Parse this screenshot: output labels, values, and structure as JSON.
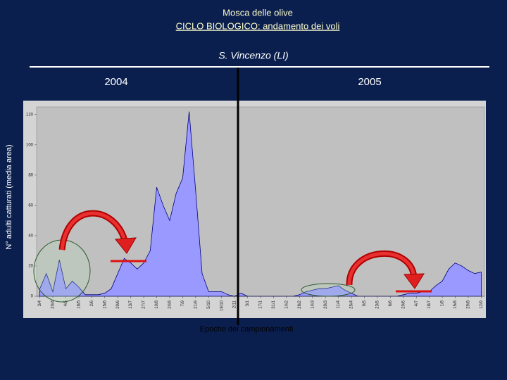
{
  "header": {
    "title": "Mosca delle olive",
    "subtitle": "CICLO BIOLOGICO: andamento dei voli",
    "location": "S. Vincenzo (LI)"
  },
  "year_labels": [
    "2004",
    "2005"
  ],
  "chart_data": {
    "type": "area",
    "y_label": "N° adulti catturati (media area)",
    "x_label": "Epoche dei campionamenti",
    "categories": [
      "3/4",
      null,
      "20/4",
      null,
      "4/5",
      null,
      "18/5",
      null,
      "2/6",
      null,
      "15/6",
      null,
      "29/6",
      null,
      "13/7",
      null,
      "27/7",
      null,
      "10/8",
      null,
      "24/8",
      null,
      "7/9",
      null,
      "21/9",
      null,
      "5/10",
      null,
      "19/10",
      null,
      "2/11",
      null,
      "3/1",
      null,
      "17/1",
      null,
      "31/1",
      null,
      "14/2",
      null,
      "28/2",
      null,
      "14/3",
      null,
      "29/3",
      null,
      "11/4",
      null,
      "25/4",
      null,
      "9/5",
      null,
      "23/5",
      null,
      "6/6",
      null,
      "20/6",
      null,
      "4/7",
      null,
      "18/7",
      null,
      "1/8",
      null,
      "15/8",
      null,
      "29/8",
      null,
      "12/9"
    ],
    "values": [
      5,
      15,
      3,
      24,
      5,
      10,
      6,
      1,
      1,
      1,
      2,
      5,
      15,
      25,
      22,
      18,
      22,
      30,
      72,
      60,
      50,
      68,
      78,
      122,
      70,
      15,
      3,
      3,
      3,
      1,
      0,
      2,
      0,
      0,
      0,
      0,
      0,
      0,
      0,
      0,
      1,
      3,
      4,
      5,
      5,
      6,
      7,
      4,
      2,
      0,
      0,
      0,
      0,
      0,
      0,
      0,
      1,
      2,
      2,
      3,
      3,
      7,
      10,
      18,
      22,
      20,
      17,
      15,
      16
    ],
    "color": "#9999ff",
    "line_color": "#000080",
    "ylim": [
      0,
      125
    ],
    "yticks": [
      0,
      20,
      40,
      60,
      80,
      100,
      120
    ]
  }
}
